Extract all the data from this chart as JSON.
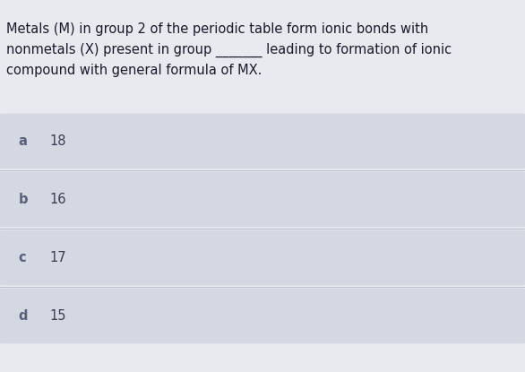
{
  "question_line1": "Metals (M) in group 2 of the periodic table form ionic bonds with",
  "question_line2": "nonmetals (X) present in group _______ leading to formation of ionic",
  "question_line3": "compound with general formula of MX.",
  "options": [
    {
      "label": "a",
      "value": "18"
    },
    {
      "label": "b",
      "value": "16"
    },
    {
      "label": "c",
      "value": "17"
    },
    {
      "label": "d",
      "value": "15"
    }
  ],
  "page_bg": "#e8eaef",
  "option_box_color": "#d4d8e2",
  "label_color": "#5a5f7a",
  "value_color": "#3a3d50",
  "question_color": "#1a1a2a",
  "question_fontsize": 10.5,
  "label_fontsize": 10.5,
  "value_fontsize": 10.5
}
